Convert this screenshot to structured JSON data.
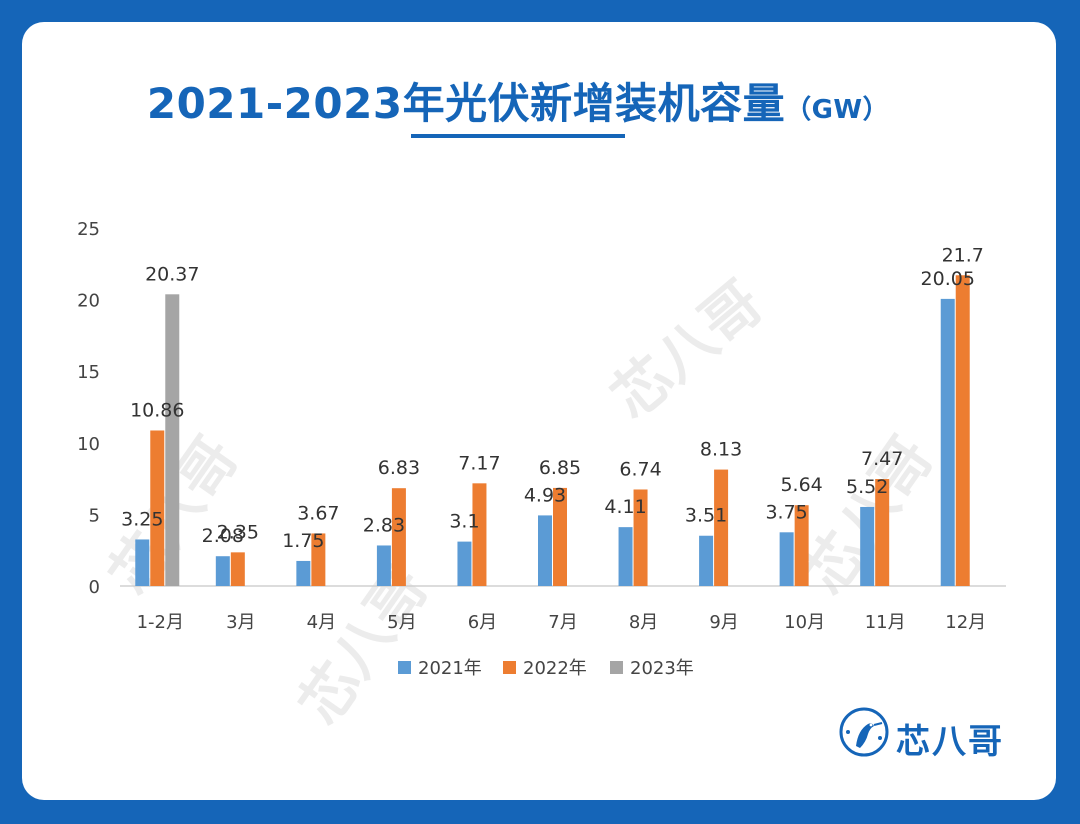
{
  "title": "2021-2023年光伏新增装机容量",
  "title_unit": "（GW）",
  "brand": "芯八哥",
  "colors": {
    "background": "#1565b8",
    "series_2021": "#5b9bd5",
    "series_2022": "#ed7d31",
    "series_2023": "#a5a5a5"
  },
  "chart_data": {
    "type": "bar",
    "categories": [
      "1-2月",
      "3月",
      "4月",
      "5月",
      "6月",
      "7月",
      "8月",
      "9月",
      "10月",
      "11月",
      "12月"
    ],
    "series": [
      {
        "name": "2021年",
        "color": "#5b9bd5",
        "values": [
          3.25,
          2.08,
          1.75,
          2.83,
          3.1,
          4.93,
          4.11,
          3.51,
          3.75,
          5.52,
          20.05
        ]
      },
      {
        "name": "2022年",
        "color": "#ed7d31",
        "values": [
          10.86,
          2.35,
          3.67,
          6.83,
          7.17,
          6.85,
          6.74,
          8.13,
          5.64,
          7.47,
          21.7
        ]
      },
      {
        "name": "2023年",
        "color": "#a5a5a5",
        "values": [
          20.37,
          null,
          null,
          null,
          null,
          null,
          null,
          null,
          null,
          null,
          null
        ]
      }
    ],
    "ylim": [
      0,
      25
    ],
    "yticks": [
      0,
      5,
      10,
      15,
      20,
      25
    ],
    "grid": false,
    "legend": "bottom-center"
  }
}
